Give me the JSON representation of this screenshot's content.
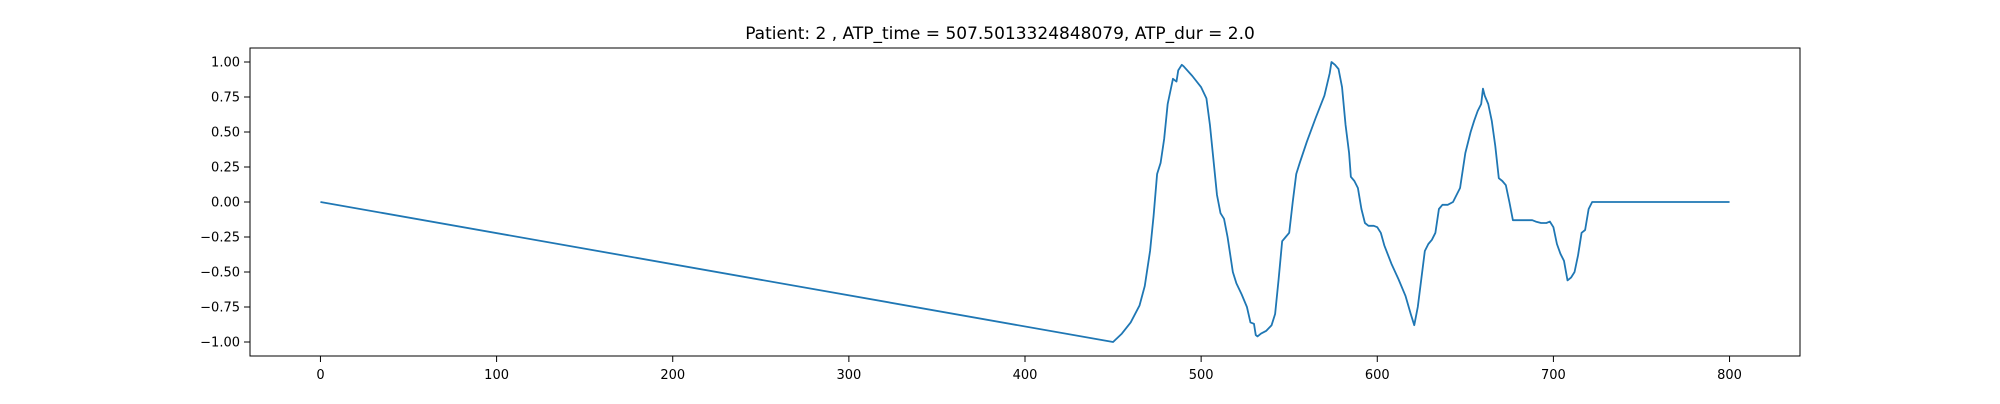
{
  "chart_data": {
    "type": "line",
    "title": "Patient: 2 , ATP_time = 507.5013324848079, ATP_dur = 2.0",
    "xlabel": "",
    "ylabel": "",
    "xlim": [
      -40,
      840
    ],
    "ylim": [
      -1.1,
      1.1
    ],
    "xticks": [
      0,
      100,
      200,
      300,
      400,
      500,
      600,
      700,
      800
    ],
    "xtick_labels": [
      "0",
      "100",
      "200",
      "300",
      "400",
      "500",
      "600",
      "700",
      "800"
    ],
    "yticks": [
      1.0,
      0.75,
      0.5,
      0.25,
      0.0,
      -0.25,
      -0.5,
      -0.75,
      -1.0
    ],
    "ytick_labels": [
      "1.00",
      "0.75",
      "0.50",
      "0.25",
      "0.00",
      "−0.25",
      "−0.50",
      "−0.75",
      "−1.00"
    ],
    "grid": false,
    "legend": "none",
    "series": [
      {
        "color": "#1f77b4",
        "x": [
          0,
          450,
          455,
          460,
          465,
          468,
          471,
          473,
          475,
          477,
          479,
          481,
          484,
          486,
          487,
          489,
          490,
          495,
          500,
          503,
          505,
          507,
          509,
          511,
          513,
          515,
          518,
          520,
          523,
          526,
          528,
          530,
          531,
          532,
          534,
          537,
          540,
          542,
          544,
          546,
          548,
          550,
          552,
          554,
          556,
          560,
          565,
          570,
          573,
          574,
          576,
          578,
          580,
          582,
          584,
          585,
          587,
          589,
          591,
          593,
          595,
          598,
          600,
          602,
          604,
          608,
          612,
          616,
          619,
          621,
          623,
          625,
          627,
          629,
          631,
          633,
          635,
          637,
          640,
          643,
          645,
          647,
          650,
          653,
          655,
          657,
          659,
          660,
          661,
          663,
          665,
          667,
          669,
          671,
          673,
          675,
          677,
          680,
          685,
          688,
          690,
          693,
          696,
          698,
          700,
          702,
          704,
          706,
          708,
          710,
          712,
          714,
          716,
          718,
          720,
          722,
          724,
          800
        ],
        "y": [
          0.0,
          -1.0,
          -0.94,
          -0.86,
          -0.74,
          -0.6,
          -0.35,
          -0.1,
          0.2,
          0.28,
          0.45,
          0.7,
          0.88,
          0.86,
          0.94,
          0.98,
          0.97,
          0.9,
          0.82,
          0.74,
          0.55,
          0.3,
          0.05,
          -0.08,
          -0.12,
          -0.25,
          -0.5,
          -0.58,
          -0.66,
          -0.75,
          -0.86,
          -0.87,
          -0.95,
          -0.96,
          -0.94,
          -0.92,
          -0.88,
          -0.8,
          -0.55,
          -0.28,
          -0.25,
          -0.22,
          0.0,
          0.2,
          0.28,
          0.43,
          0.6,
          0.76,
          0.92,
          1.0,
          0.98,
          0.95,
          0.82,
          0.55,
          0.35,
          0.18,
          0.15,
          0.1,
          -0.05,
          -0.15,
          -0.17,
          -0.17,
          -0.18,
          -0.22,
          -0.31,
          -0.44,
          -0.55,
          -0.67,
          -0.8,
          -0.88,
          -0.75,
          -0.55,
          -0.35,
          -0.3,
          -0.27,
          -0.22,
          -0.05,
          -0.02,
          -0.02,
          0.0,
          0.05,
          0.1,
          0.35,
          0.5,
          0.58,
          0.65,
          0.7,
          0.81,
          0.76,
          0.7,
          0.58,
          0.4,
          0.17,
          0.15,
          0.12,
          0.0,
          -0.13,
          -0.13,
          -0.13,
          -0.13,
          -0.14,
          -0.15,
          -0.15,
          -0.14,
          -0.18,
          -0.3,
          -0.37,
          -0.42,
          -0.56,
          -0.54,
          -0.5,
          -0.38,
          -0.22,
          -0.2,
          -0.05,
          0.0,
          0.0,
          0.0
        ]
      }
    ]
  }
}
